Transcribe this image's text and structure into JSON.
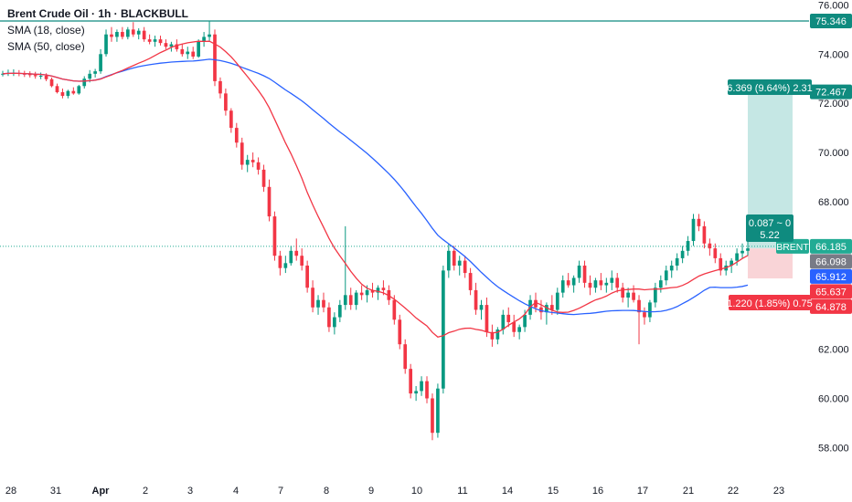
{
  "chart_data": {
    "type": "candlestick",
    "title": "Brent Crude Oil · 1h · BLACKBULL",
    "indicators": [
      {
        "label": "SMA (18, close)",
        "color": "#f23645"
      },
      {
        "label": "SMA (50, close)",
        "color": "#2962ff"
      }
    ],
    "ylim": [
      56.9,
      76.2
    ],
    "y_ticks": [
      "76.000",
      "74.000",
      "72.000",
      "70.000",
      "68.000",
      "62.000",
      "60.000",
      "58.000"
    ],
    "x_ticks": [
      "28",
      "31",
      "Apr",
      "2",
      "3",
      "4",
      "7",
      "8",
      "9",
      "10",
      "11",
      "14",
      "15",
      "16",
      "17",
      "21",
      "22",
      "23"
    ],
    "candles_per_session": 8,
    "ohlc": [
      [
        73.2,
        73.32,
        73.09,
        73.2
      ],
      [
        73.2,
        73.37,
        73.11,
        73.23
      ],
      [
        73.23,
        73.38,
        73.11,
        73.23
      ],
      [
        73.23,
        73.35,
        73.1,
        73.2
      ],
      [
        73.2,
        73.32,
        73.07,
        73.18
      ],
      [
        73.18,
        73.3,
        73.05,
        73.15
      ],
      [
        73.15,
        73.28,
        73.0,
        73.1
      ],
      [
        73.1,
        73.25,
        72.98,
        73.12
      ],
      [
        73.12,
        73.22,
        72.9,
        72.98
      ],
      [
        72.98,
        73.05,
        72.65,
        72.7
      ],
      [
        72.7,
        72.8,
        72.4,
        72.45
      ],
      [
        72.45,
        72.6,
        72.2,
        72.3
      ],
      [
        72.3,
        72.55,
        72.2,
        72.5
      ],
      [
        72.5,
        72.65,
        72.35,
        72.4
      ],
      [
        72.4,
        72.75,
        72.35,
        72.7
      ],
      [
        72.7,
        73.1,
        72.6,
        73.0
      ],
      [
        73.0,
        73.35,
        72.85,
        73.2
      ],
      [
        73.2,
        73.4,
        73.05,
        73.3
      ],
      [
        73.3,
        74.2,
        73.2,
        74.0
      ],
      [
        74.0,
        75.0,
        73.9,
        74.8
      ],
      [
        74.8,
        75.1,
        74.5,
        74.7
      ],
      [
        74.7,
        75.0,
        74.5,
        74.9
      ],
      [
        74.9,
        75.1,
        74.6,
        74.7
      ],
      [
        74.7,
        75.1,
        74.6,
        75.0
      ],
      [
        75.0,
        75.3,
        74.7,
        74.8
      ],
      [
        74.8,
        75.05,
        74.6,
        74.95
      ],
      [
        74.95,
        75.1,
        74.5,
        74.6
      ],
      [
        74.6,
        74.8,
        74.4,
        74.5
      ],
      [
        74.5,
        74.75,
        74.3,
        74.6
      ],
      [
        74.6,
        74.75,
        74.35,
        74.45
      ],
      [
        74.45,
        74.6,
        74.2,
        74.3
      ],
      [
        74.3,
        74.5,
        74.1,
        74.4
      ],
      [
        74.4,
        74.6,
        74.1,
        74.2
      ],
      [
        74.2,
        74.4,
        73.9,
        74.0
      ],
      [
        74.0,
        74.3,
        73.8,
        74.1
      ],
      [
        74.1,
        74.3,
        73.8,
        73.9
      ],
      [
        73.9,
        74.6,
        73.85,
        74.5
      ],
      [
        74.5,
        74.9,
        74.3,
        74.7
      ],
      [
        74.7,
        75.35,
        74.5,
        74.8
      ],
      [
        74.8,
        75.0,
        72.7,
        72.9
      ],
      [
        72.9,
        73.05,
        72.2,
        72.4
      ],
      [
        72.4,
        72.6,
        71.5,
        71.7
      ],
      [
        71.7,
        71.8,
        70.8,
        71.0
      ],
      [
        71.0,
        71.2,
        70.2,
        70.4
      ],
      [
        70.4,
        70.6,
        69.3,
        69.5
      ],
      [
        69.5,
        69.9,
        69.2,
        69.7
      ],
      [
        69.7,
        70.0,
        69.4,
        69.6
      ],
      [
        69.6,
        69.8,
        69.1,
        69.3
      ],
      [
        69.3,
        69.5,
        68.4,
        68.6
      ],
      [
        68.6,
        68.9,
        67.2,
        67.4
      ],
      [
        67.4,
        67.6,
        65.6,
        65.8
      ],
      [
        65.8,
        66.0,
        65.0,
        65.3
      ],
      [
        65.3,
        65.8,
        65.1,
        65.5
      ],
      [
        65.5,
        66.2,
        65.4,
        66.0
      ],
      [
        66.0,
        66.5,
        65.6,
        65.8
      ],
      [
        65.8,
        66.1,
        65.2,
        65.4
      ],
      [
        65.4,
        65.6,
        64.3,
        64.5
      ],
      [
        64.5,
        64.8,
        63.5,
        63.7
      ],
      [
        63.7,
        64.2,
        63.4,
        64.0
      ],
      [
        64.0,
        64.3,
        63.5,
        63.7
      ],
      [
        63.7,
        63.9,
        62.7,
        62.9
      ],
      [
        62.9,
        63.5,
        62.6,
        63.3
      ],
      [
        63.3,
        64.0,
        63.1,
        63.8
      ],
      [
        63.8,
        67.0,
        63.6,
        64.2
      ],
      [
        64.2,
        64.5,
        63.6,
        63.8
      ],
      [
        63.8,
        64.4,
        63.6,
        64.3
      ],
      [
        64.3,
        64.6,
        64.0,
        64.2
      ],
      [
        64.2,
        64.6,
        63.9,
        64.4
      ],
      [
        64.4,
        64.7,
        64.1,
        64.3
      ],
      [
        64.3,
        64.6,
        64.0,
        64.5
      ],
      [
        64.5,
        64.8,
        64.2,
        64.4
      ],
      [
        64.4,
        64.6,
        63.8,
        64.0
      ],
      [
        64.0,
        64.2,
        63.0,
        63.2
      ],
      [
        63.2,
        63.4,
        62.0,
        62.2
      ],
      [
        62.2,
        62.4,
        61.0,
        61.2
      ],
      [
        61.2,
        61.4,
        60.0,
        60.2
      ],
      [
        60.2,
        60.5,
        59.9,
        60.3
      ],
      [
        60.3,
        60.9,
        60.1,
        60.7
      ],
      [
        60.7,
        60.9,
        59.8,
        60.0
      ],
      [
        60.0,
        60.2,
        58.3,
        58.6
      ],
      [
        58.6,
        60.6,
        58.4,
        60.4
      ],
      [
        60.4,
        65.4,
        60.2,
        65.2
      ],
      [
        65.2,
        66.3,
        64.9,
        66.0
      ],
      [
        66.0,
        66.2,
        65.2,
        65.4
      ],
      [
        65.4,
        65.8,
        65.0,
        65.6
      ],
      [
        65.6,
        65.8,
        64.9,
        65.1
      ],
      [
        65.1,
        65.3,
        64.2,
        64.4
      ],
      [
        64.4,
        64.7,
        63.4,
        63.6
      ],
      [
        63.6,
        64.0,
        63.2,
        63.8
      ],
      [
        63.8,
        64.1,
        62.5,
        62.7
      ],
      [
        62.7,
        63.0,
        62.1,
        62.4
      ],
      [
        62.4,
        62.9,
        62.2,
        62.8
      ],
      [
        62.8,
        63.6,
        62.6,
        63.4
      ],
      [
        63.4,
        63.7,
        62.9,
        63.1
      ],
      [
        63.1,
        63.4,
        62.5,
        62.7
      ],
      [
        62.7,
        63.0,
        62.4,
        62.9
      ],
      [
        62.9,
        63.6,
        62.7,
        63.4
      ],
      [
        63.4,
        64.2,
        63.2,
        64.0
      ],
      [
        64.0,
        64.3,
        63.5,
        63.7
      ],
      [
        63.7,
        64.0,
        63.2,
        63.5
      ],
      [
        63.5,
        63.9,
        63.0,
        63.8
      ],
      [
        63.8,
        64.2,
        63.4,
        63.6
      ],
      [
        63.6,
        64.5,
        63.4,
        64.3
      ],
      [
        64.3,
        65.0,
        64.1,
        64.8
      ],
      [
        64.8,
        65.1,
        64.5,
        64.6
      ],
      [
        64.6,
        65.0,
        64.3,
        64.9
      ],
      [
        64.9,
        65.6,
        64.7,
        65.4
      ],
      [
        65.4,
        65.6,
        64.5,
        64.7
      ],
      [
        64.7,
        65.0,
        64.2,
        64.5
      ],
      [
        64.5,
        64.9,
        64.3,
        64.8
      ],
      [
        64.8,
        65.1,
        64.4,
        64.6
      ],
      [
        64.6,
        64.9,
        64.3,
        64.7
      ],
      [
        64.7,
        65.2,
        64.4,
        64.9
      ],
      [
        64.9,
        65.1,
        64.3,
        64.5
      ],
      [
        64.5,
        64.7,
        63.9,
        64.1
      ],
      [
        64.1,
        64.5,
        63.7,
        64.3
      ],
      [
        64.3,
        64.6,
        63.9,
        64.0
      ],
      [
        64.0,
        64.2,
        62.2,
        63.5
      ],
      [
        63.5,
        63.7,
        63.0,
        63.3
      ],
      [
        63.3,
        64.0,
        63.1,
        63.9
      ],
      [
        63.9,
        64.7,
        63.7,
        64.5
      ],
      [
        64.5,
        65.0,
        64.3,
        64.8
      ],
      [
        64.8,
        65.4,
        64.6,
        65.2
      ],
      [
        65.2,
        65.6,
        64.9,
        65.4
      ],
      [
        65.4,
        65.9,
        65.2,
        65.7
      ],
      [
        65.7,
        66.2,
        65.5,
        66.0
      ],
      [
        66.0,
        66.6,
        65.8,
        66.4
      ],
      [
        66.4,
        67.5,
        66.2,
        67.3
      ],
      [
        67.3,
        67.5,
        66.8,
        67.0
      ],
      [
        67.0,
        67.2,
        66.1,
        66.3
      ],
      [
        66.3,
        66.5,
        65.8,
        66.1
      ],
      [
        66.1,
        66.3,
        65.5,
        65.7
      ],
      [
        65.7,
        65.9,
        65.0,
        65.2
      ],
      [
        65.2,
        65.6,
        65.0,
        65.4
      ],
      [
        65.4,
        65.7,
        65.1,
        65.6
      ],
      [
        65.6,
        66.1,
        65.4,
        65.9
      ],
      [
        65.9,
        66.3,
        65.7,
        66.0
      ],
      [
        66.0,
        66.4,
        65.8,
        66.1
      ]
    ],
    "sma18_color": "#f23645",
    "sma50_color": "#2962ff",
    "horizontal_line": {
      "value": 75.346,
      "label": "75.346",
      "color": "#0f8b7f"
    },
    "position": {
      "direction": "long",
      "entry": 66.098,
      "target": 72.467,
      "stop": 64.878,
      "target_label": "6.369 (9.64%) 2.31",
      "stop_label": "1.220 (1.85%) 0.75",
      "center_label_line1": "0.087 ~ 0",
      "center_label_line2": "5.22",
      "profit_color": "#b2dfdb",
      "loss_color": "#f8c9cd"
    },
    "price_labels": [
      {
        "text": "72.467",
        "value": 72.467,
        "color": "#0f8b7f"
      },
      {
        "text": "66.185",
        "value": 66.185,
        "color": "#22ab94",
        "tag": "BRENT"
      },
      {
        "text": "66.098",
        "value": 66.098,
        "color": "#787b86"
      },
      {
        "text": "65.912",
        "value": 65.912,
        "color": "#2962ff"
      },
      {
        "text": "65.637",
        "value": 65.637,
        "color": "#f23645"
      },
      {
        "text": "64.878",
        "value": 64.878,
        "color": "#f23645"
      }
    ],
    "last_price": 66.185
  }
}
